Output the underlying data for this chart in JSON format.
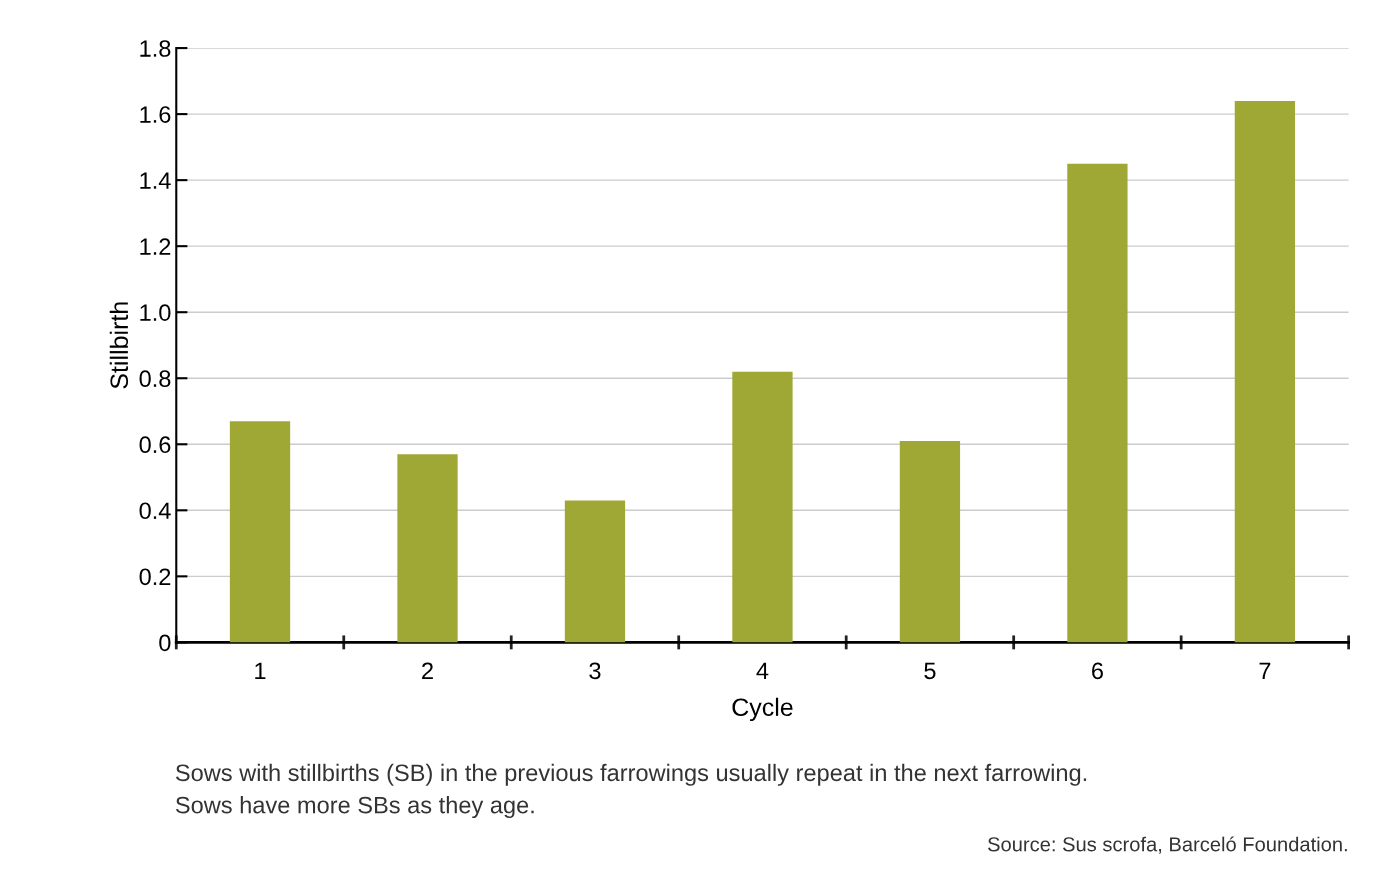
{
  "chart_data": {
    "type": "bar",
    "xlabel": "Cycle",
    "ylabel": "Stillbirth",
    "categories": [
      "1",
      "2",
      "3",
      "4",
      "5",
      "6",
      "7"
    ],
    "values": [
      0.67,
      0.57,
      0.43,
      0.82,
      0.61,
      1.45,
      1.64
    ],
    "color": "#a0a835",
    "ylim": [
      0,
      1.8
    ],
    "yticks": [
      {
        "value": 0,
        "label": "0"
      },
      {
        "value": 0.2,
        "label": "0.2"
      },
      {
        "value": 0.4,
        "label": "0.4"
      },
      {
        "value": 0.6,
        "label": "0.6"
      },
      {
        "value": 0.8,
        "label": "0.8"
      },
      {
        "value": 1.0,
        "label": "1.0"
      },
      {
        "value": 1.2,
        "label": "1.2"
      },
      {
        "value": 1.4,
        "label": "1.4"
      },
      {
        "value": 1.6,
        "label": "1.6"
      },
      {
        "value": 1.8,
        "label": "1.8"
      }
    ],
    "grid": "y",
    "annotations": [
      "Sows with stillbirths (SB) in the previous farrowings usually repeat in the next farrowing.\nSows have more SBs as they age.",
      "Source: Sus scrofa, Barceló Foundation."
    ]
  }
}
